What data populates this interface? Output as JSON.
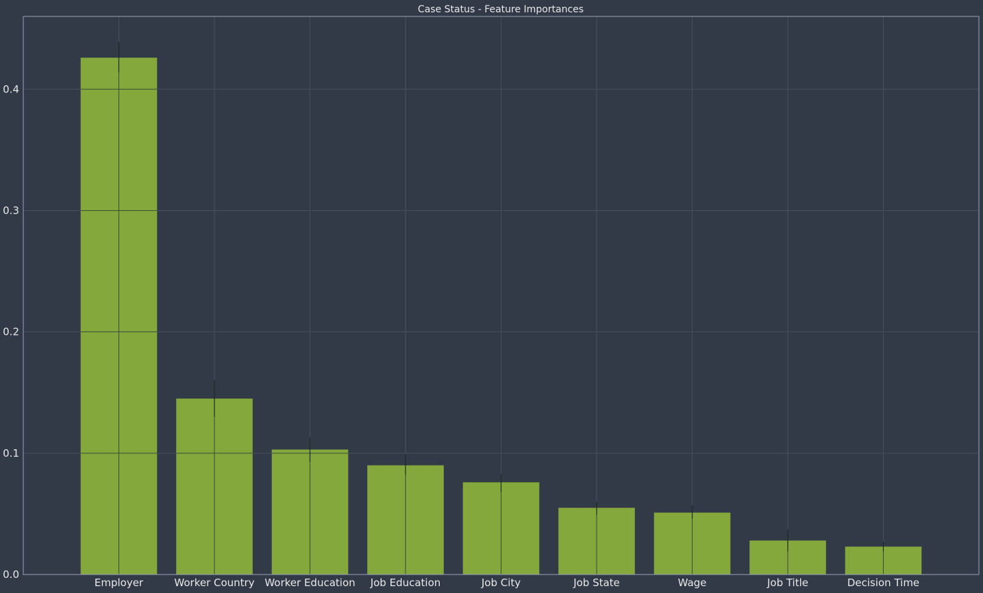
{
  "chart_data": {
    "type": "bar",
    "title": "Case Status - Feature Importances",
    "xlabel": "",
    "ylabel": "",
    "categories": [
      "Employer",
      "Worker Country",
      "Worker Education",
      "Job Education",
      "Job City",
      "Job State",
      "Wage",
      "Job Title",
      "Decision Time"
    ],
    "values": [
      0.426,
      0.145,
      0.103,
      0.09,
      0.076,
      0.055,
      0.051,
      0.028,
      0.023
    ],
    "error_low": [
      0.414,
      0.13,
      0.093,
      0.082,
      0.068,
      0.049,
      0.046,
      0.019,
      0.019
    ],
    "error_high": [
      0.439,
      0.16,
      0.113,
      0.099,
      0.083,
      0.06,
      0.057,
      0.037,
      0.027
    ],
    "yticks": [
      "0.0",
      "0.1",
      "0.2",
      "0.3",
      "0.4"
    ],
    "ylim": [
      0,
      0.46
    ],
    "grid": true,
    "colors": {
      "background": "#323a48",
      "bar": "#84a83c",
      "grid": "#46505c",
      "grid_on_bar": "#3c4a3a",
      "axes_edge": "#9aa4b8",
      "error_bar": "#1e2a1e",
      "text": "#e8e8e8"
    }
  }
}
